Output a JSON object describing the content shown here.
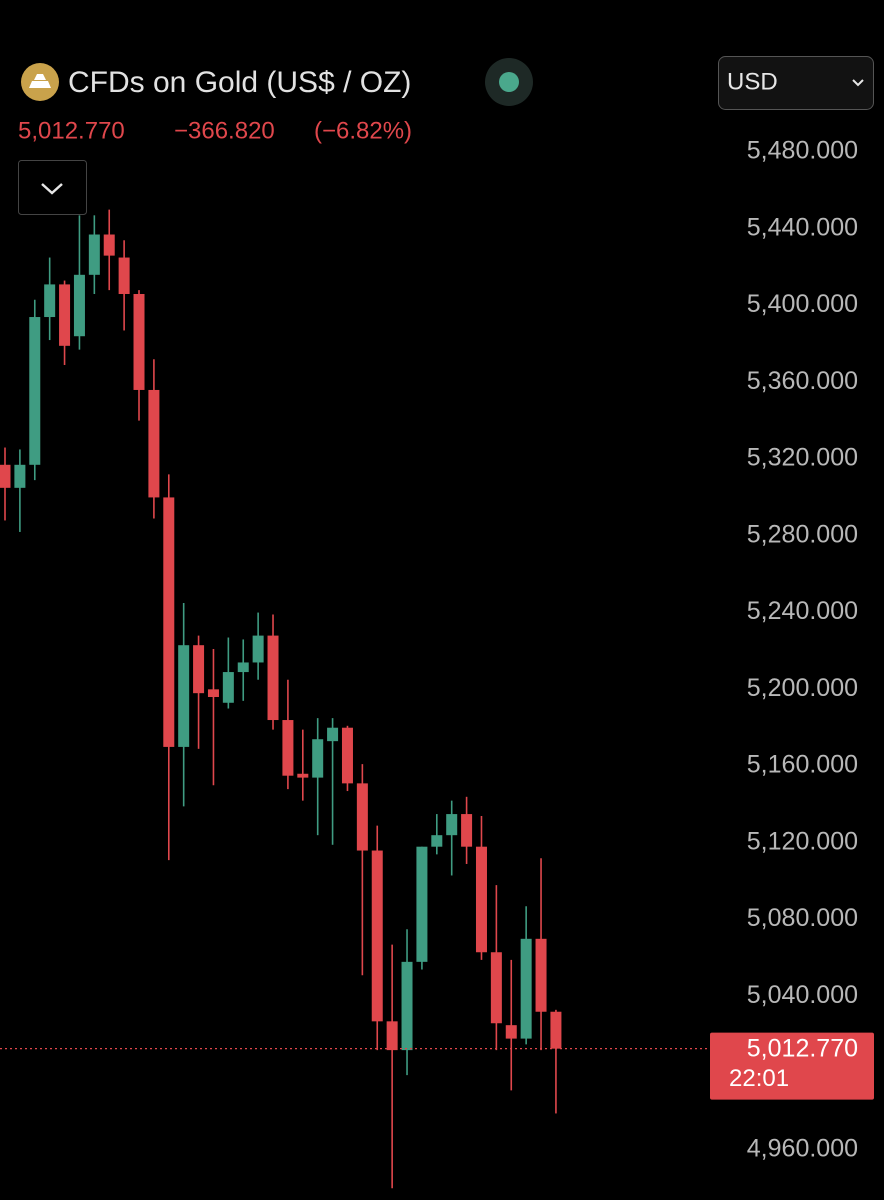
{
  "header": {
    "title": "CFDs on Gold (US$ / OZ)",
    "price": "5,012.770",
    "change": "−366.820",
    "change_percent": "(−6.82%)",
    "currency": "USD"
  },
  "chart_data": {
    "type": "candlestick",
    "up_color": "#3f9c82",
    "down_color": "#e0474c",
    "series": [
      {
        "open": [
          5317,
          5305,
          5317,
          5394,
          5411,
          5384,
          5416,
          5437,
          5425,
          5406,
          5356,
          5300,
          5170,
          5223,
          5200,
          5193,
          5209,
          5214,
          5228,
          5184,
          5156,
          5154,
          5173,
          5180,
          5151,
          5116,
          5027,
          5012,
          5058,
          5118,
          5124,
          5135,
          5118,
          5063,
          5025,
          5018,
          5070,
          5032
        ],
        "high": [
          5326,
          5325,
          5403,
          5425,
          5413,
          5447,
          5447,
          5450,
          5434,
          5408,
          5372,
          5312,
          5245,
          5228,
          5221,
          5227,
          5226,
          5240,
          5239,
          5205,
          5179,
          5185,
          5185,
          5181,
          5161,
          5129,
          5067,
          5075,
          5118,
          5135,
          5142,
          5144,
          5134,
          5098,
          5059,
          5087,
          5112,
          5033
        ],
        "low": [
          5288,
          5282,
          5309,
          5382,
          5369,
          5377,
          5406,
          5408,
          5387,
          5340,
          5289,
          5111,
          5139,
          5169,
          5150,
          5190,
          5194,
          5205,
          5179,
          5148,
          5142,
          5124,
          5119,
          5147,
          5051,
          5012,
          4940,
          4999,
          5054,
          5114,
          5103,
          5109,
          5059,
          5012,
          4991,
          5015,
          5012,
          4979
        ],
        "close": [
          5305,
          5317,
          5394,
          5411,
          5379,
          5416,
          5437,
          5426,
          5406,
          5356,
          5300,
          5170,
          5223,
          5198,
          5196,
          5209,
          5214,
          5228,
          5184,
          5155,
          5154,
          5174,
          5180,
          5151,
          5116,
          5027,
          5012,
          5058,
          5118,
          5124,
          5135,
          5118,
          5063,
          5026,
          5018,
          5070,
          5032,
          5012.77
        ]
      }
    ],
    "ylim": [
      4933.9,
      5559.2
    ],
    "yticks": [
      {
        "value": 4960,
        "label": "4,960.000"
      },
      {
        "value": 5040,
        "label": "5,040.000"
      },
      {
        "value": 5080,
        "label": "5,080.000"
      },
      {
        "value": 5120,
        "label": "5,120.000"
      },
      {
        "value": 5160,
        "label": "5,160.000"
      },
      {
        "value": 5200,
        "label": "5,200.000"
      },
      {
        "value": 5240,
        "label": "5,240.000"
      },
      {
        "value": 5280,
        "label": "5,280.000"
      },
      {
        "value": 5320,
        "label": "5,320.000"
      },
      {
        "value": 5360,
        "label": "5,360.000"
      },
      {
        "value": 5400,
        "label": "5,400.000"
      },
      {
        "value": 5440,
        "label": "5,440.000"
      },
      {
        "value": 5480,
        "label": "5,480.000"
      }
    ],
    "current_price": {
      "value": 5012.77,
      "label": "5,012.770",
      "countdown": "22:01",
      "color": "#e0474c"
    }
  }
}
